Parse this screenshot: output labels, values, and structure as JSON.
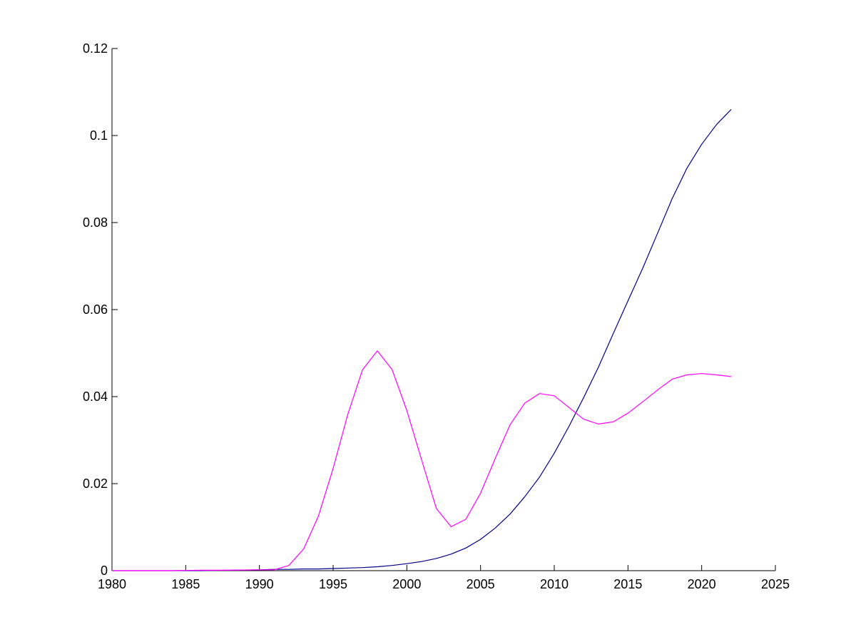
{
  "chart_data": {
    "type": "line",
    "title": "",
    "xlabel": "",
    "ylabel": "",
    "xlim": [
      1980,
      2025
    ],
    "ylim": [
      0,
      0.12
    ],
    "grid": false,
    "x_ticks": [
      1980,
      1985,
      1990,
      1995,
      2000,
      2005,
      2010,
      2015,
      2020,
      2025
    ],
    "x_tick_labels": [
      "1980",
      "1985",
      "1990",
      "1995",
      "2000",
      "2005",
      "2010",
      "2015",
      "2020",
      "2025"
    ],
    "y_ticks": [
      0,
      0.02,
      0.04,
      0.06,
      0.08,
      0.1,
      0.12
    ],
    "y_tick_labels": [
      "0",
      "0.02",
      "0.04",
      "0.06",
      "0.08",
      "0.1",
      "0.12"
    ],
    "series": [
      {
        "color": "#00008b",
        "x": [
          1980,
          1982,
          1984,
          1986,
          1988,
          1990,
          1991,
          1992,
          1993,
          1994,
          1995,
          1996,
          1997,
          1998,
          1999,
          2000,
          2001,
          2002,
          2003,
          2004,
          2005,
          2006,
          2007,
          2008,
          2009,
          2010,
          2011,
          2012,
          2013,
          2014,
          2015,
          2016,
          2017,
          2018,
          2019,
          2020,
          2021,
          2022
        ],
        "values": [
          0,
          0,
          0,
          0,
          0.0001,
          0.0002,
          0.0003,
          0.0003,
          0.0004,
          0.0004,
          0.0005,
          0.0006,
          0.0007,
          0.0009,
          0.0012,
          0.0016,
          0.0021,
          0.0028,
          0.0038,
          0.0052,
          0.0072,
          0.0098,
          0.013,
          0.017,
          0.0215,
          0.027,
          0.0332,
          0.0398,
          0.0468,
          0.0545,
          0.062,
          0.0695,
          0.0775,
          0.0855,
          0.0925,
          0.098,
          0.1025,
          0.106
        ]
      },
      {
        "color": "#ff00ff",
        "x": [
          1980,
          1982,
          1984,
          1986,
          1988,
          1990,
          1991,
          1992,
          1993,
          1994,
          1995,
          1996,
          1997,
          1998,
          1999,
          2000,
          2001,
          2002,
          2003,
          2004,
          2005,
          2006,
          2007,
          2008,
          2009,
          2010,
          2011,
          2012,
          2013,
          2014,
          2015,
          2016,
          2017,
          2018,
          2019,
          2020,
          2021,
          2022
        ],
        "values": [
          0,
          0,
          0,
          0.0001,
          0.0001,
          0.0002,
          0.0002,
          0.0012,
          0.005,
          0.0125,
          0.0235,
          0.036,
          0.0462,
          0.0505,
          0.0462,
          0.0368,
          0.0255,
          0.0143,
          0.0101,
          0.0118,
          0.0178,
          0.0258,
          0.0335,
          0.0385,
          0.0407,
          0.0402,
          0.0375,
          0.0348,
          0.0337,
          0.0342,
          0.0362,
          0.0388,
          0.0415,
          0.044,
          0.045,
          0.0453,
          0.045,
          0.0446
        ]
      }
    ]
  }
}
